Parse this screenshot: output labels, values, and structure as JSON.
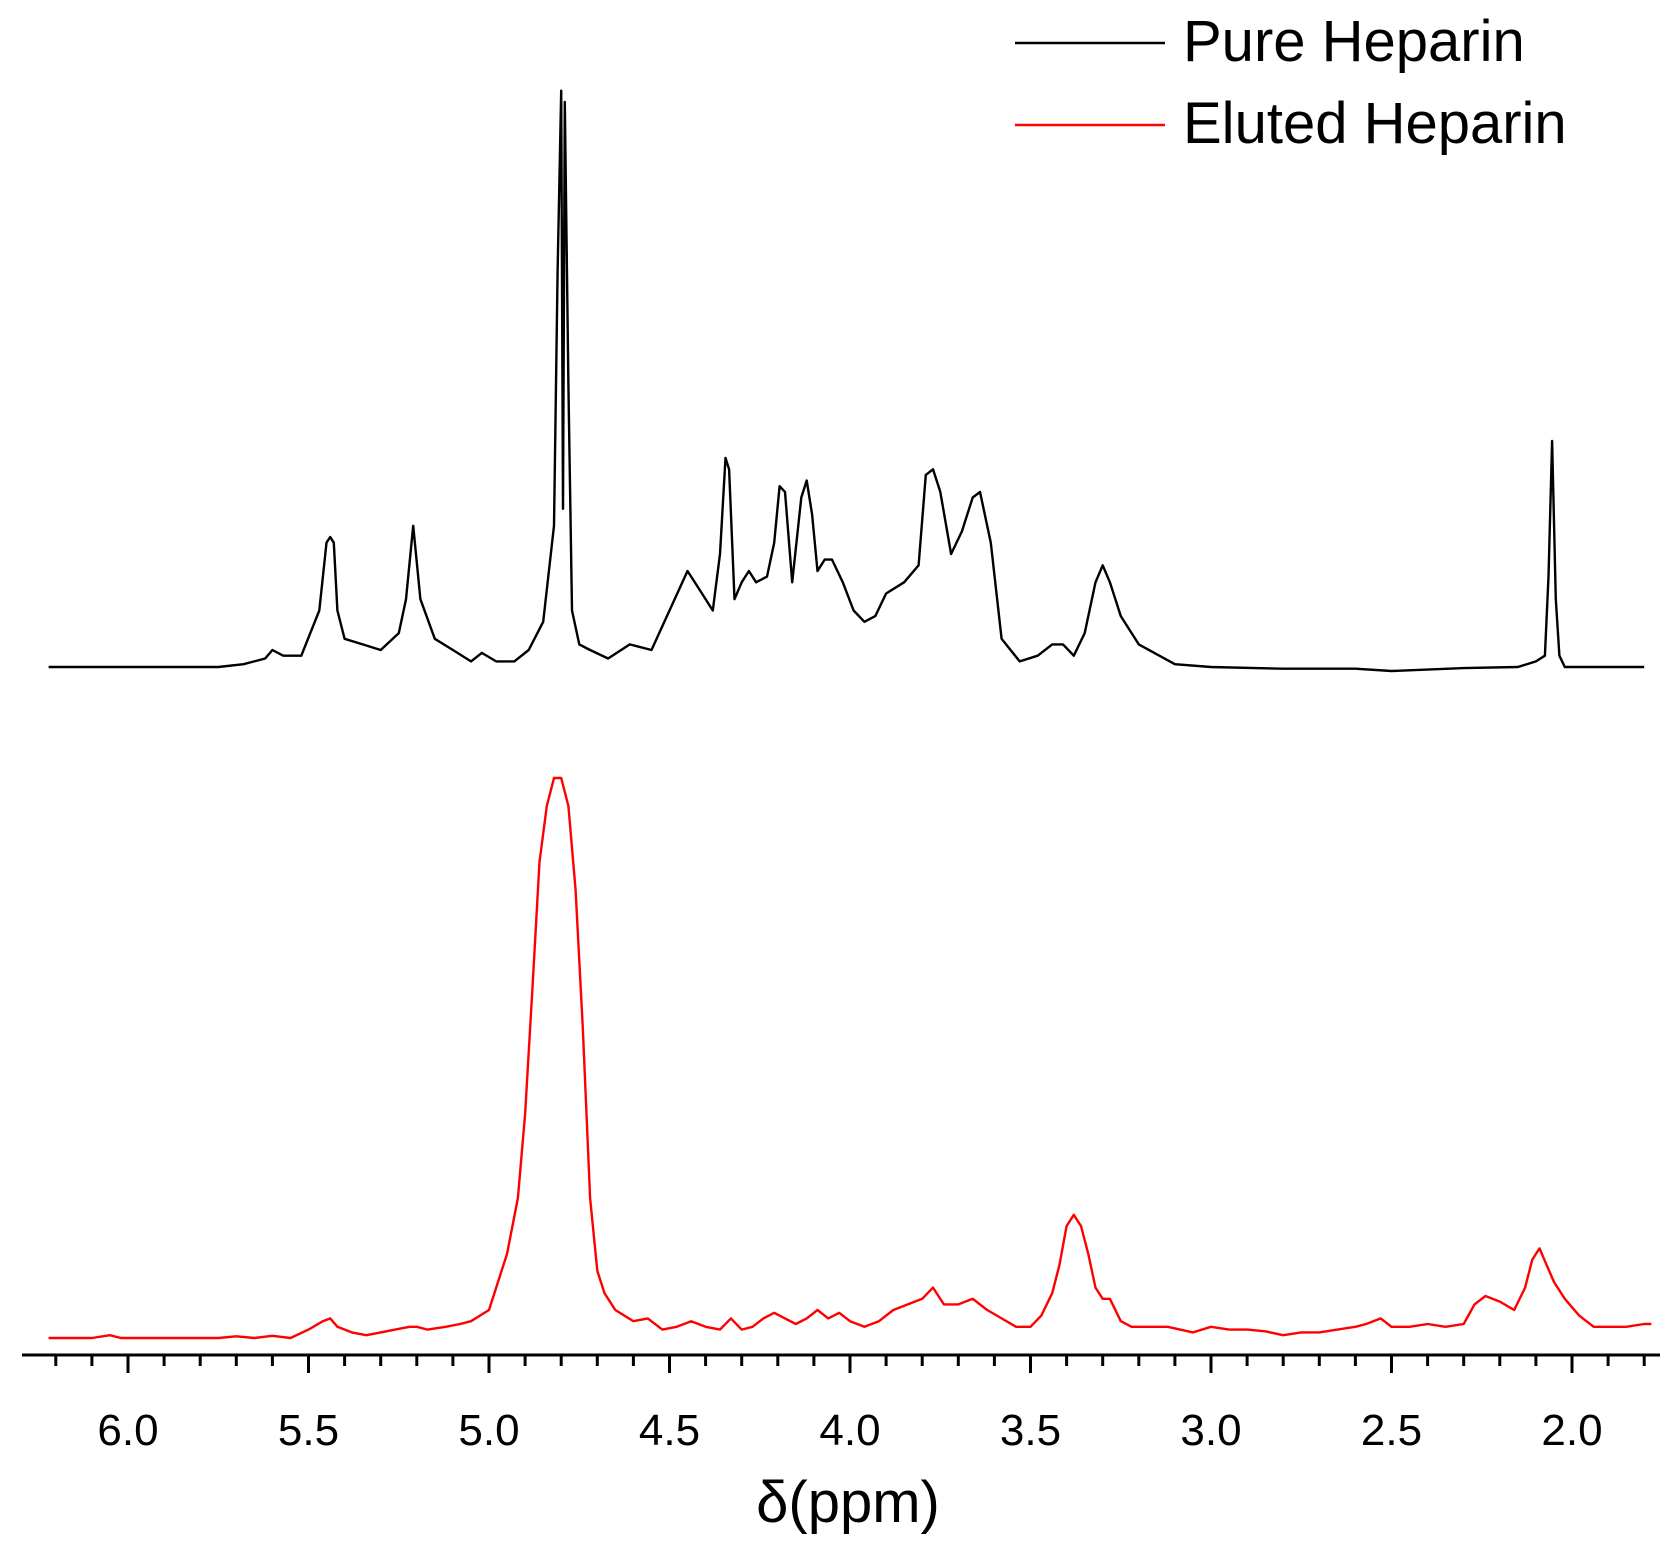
{
  "chart_data": {
    "type": "line",
    "xlabel": "δ(ppm)",
    "ylabel": "",
    "title": "",
    "x_reversed": true,
    "xlim": [
      6.25,
      1.75
    ],
    "x_major_ticks": [
      6.0,
      5.5,
      5.0,
      4.5,
      4.0,
      3.5,
      3.0,
      2.5,
      2.0
    ],
    "x_tick_labels": [
      "6.0",
      "5.5",
      "5.0",
      "4.5",
      "4.0",
      "3.5",
      "3.0",
      "2.5",
      "2.0"
    ],
    "x_minor_step": 0.1,
    "y_axis_shown": false,
    "legend_position": "top-right",
    "grid": false,
    "series": [
      {
        "name": "Pure Heparin",
        "color": "#000000",
        "offset": 1.0,
        "x": [
          6.22,
          5.75,
          5.68,
          5.62,
          5.6,
          5.57,
          5.52,
          5.47,
          5.45,
          5.44,
          5.43,
          5.42,
          5.4,
          5.35,
          5.3,
          5.25,
          5.23,
          5.21,
          5.19,
          5.15,
          5.1,
          5.05,
          5.02,
          4.98,
          4.93,
          4.89,
          4.85,
          4.82,
          4.81,
          4.8,
          4.795,
          4.79,
          4.78,
          4.77,
          4.75,
          4.72,
          4.67,
          4.61,
          4.55,
          4.5,
          4.45,
          4.42,
          4.38,
          4.36,
          4.345,
          4.335,
          4.32,
          4.3,
          4.28,
          4.26,
          4.23,
          4.21,
          4.195,
          4.18,
          4.16,
          4.135,
          4.12,
          4.105,
          4.09,
          4.07,
          4.05,
          4.02,
          3.99,
          3.96,
          3.93,
          3.9,
          3.85,
          3.81,
          3.79,
          3.77,
          3.75,
          3.72,
          3.69,
          3.66,
          3.64,
          3.61,
          3.58,
          3.53,
          3.48,
          3.44,
          3.41,
          3.38,
          3.35,
          3.32,
          3.3,
          3.28,
          3.25,
          3.2,
          3.1,
          3.0,
          2.8,
          2.6,
          2.5,
          2.3,
          2.15,
          2.1,
          2.075,
          2.065,
          2.055,
          2.045,
          2.035,
          2.02,
          1.95,
          1.8
        ],
        "y": [
          0.0,
          0.0,
          0.005,
          0.015,
          0.03,
          0.02,
          0.02,
          0.1,
          0.22,
          0.23,
          0.22,
          0.1,
          0.05,
          0.04,
          0.03,
          0.06,
          0.12,
          0.25,
          0.12,
          0.05,
          0.03,
          0.01,
          0.025,
          0.01,
          0.01,
          0.03,
          0.08,
          0.25,
          0.7,
          1.02,
          0.28,
          1.0,
          0.5,
          0.1,
          0.04,
          0.03,
          0.015,
          0.04,
          0.03,
          0.1,
          0.17,
          0.14,
          0.1,
          0.2,
          0.37,
          0.35,
          0.12,
          0.15,
          0.17,
          0.15,
          0.16,
          0.22,
          0.32,
          0.31,
          0.15,
          0.3,
          0.33,
          0.27,
          0.17,
          0.19,
          0.19,
          0.15,
          0.1,
          0.08,
          0.09,
          0.13,
          0.15,
          0.18,
          0.34,
          0.35,
          0.31,
          0.2,
          0.24,
          0.3,
          0.31,
          0.22,
          0.05,
          0.01,
          0.02,
          0.04,
          0.04,
          0.02,
          0.06,
          0.15,
          0.18,
          0.15,
          0.09,
          0.04,
          0.005,
          0.0,
          -0.003,
          -0.003,
          -0.007,
          -0.002,
          0.0,
          0.01,
          0.02,
          0.16,
          0.4,
          0.12,
          0.02,
          0.0,
          0.0,
          0.0
        ]
      },
      {
        "name": "Eluted Heparin",
        "color": "#ff0000",
        "offset": 0.0,
        "x": [
          6.22,
          6.1,
          6.05,
          6.02,
          5.95,
          5.75,
          5.7,
          5.65,
          5.6,
          5.55,
          5.5,
          5.46,
          5.44,
          5.42,
          5.38,
          5.34,
          5.3,
          5.26,
          5.22,
          5.2,
          5.17,
          5.12,
          5.08,
          5.05,
          5.0,
          4.95,
          4.92,
          4.9,
          4.88,
          4.86,
          4.84,
          4.82,
          4.8,
          4.78,
          4.76,
          4.74,
          4.72,
          4.7,
          4.68,
          4.65,
          4.6,
          4.56,
          4.52,
          4.48,
          4.44,
          4.4,
          4.36,
          4.33,
          4.3,
          4.27,
          4.24,
          4.21,
          4.18,
          4.15,
          4.12,
          4.09,
          4.06,
          4.03,
          4.0,
          3.96,
          3.92,
          3.88,
          3.84,
          3.8,
          3.77,
          3.74,
          3.7,
          3.66,
          3.62,
          3.58,
          3.54,
          3.5,
          3.47,
          3.44,
          3.42,
          3.4,
          3.38,
          3.36,
          3.34,
          3.32,
          3.3,
          3.28,
          3.25,
          3.22,
          3.18,
          3.12,
          3.05,
          3.0,
          2.95,
          2.9,
          2.85,
          2.8,
          2.75,
          2.7,
          2.65,
          2.6,
          2.57,
          2.53,
          2.5,
          2.45,
          2.4,
          2.35,
          2.3,
          2.27,
          2.24,
          2.2,
          2.16,
          2.13,
          2.11,
          2.09,
          2.07,
          2.05,
          2.02,
          1.98,
          1.94,
          1.9,
          1.85,
          1.8,
          1.78
        ],
        "y": [
          0.0,
          0.0,
          0.005,
          0.0,
          0.0,
          0.0,
          0.003,
          0.0,
          0.004,
          0.0,
          0.015,
          0.03,
          0.035,
          0.02,
          0.01,
          0.005,
          0.01,
          0.015,
          0.02,
          0.02,
          0.015,
          0.02,
          0.025,
          0.03,
          0.05,
          0.15,
          0.25,
          0.4,
          0.62,
          0.85,
          0.95,
          1.0,
          1.0,
          0.95,
          0.8,
          0.55,
          0.25,
          0.12,
          0.08,
          0.05,
          0.03,
          0.035,
          0.015,
          0.02,
          0.03,
          0.02,
          0.015,
          0.035,
          0.015,
          0.02,
          0.035,
          0.045,
          0.035,
          0.025,
          0.035,
          0.05,
          0.035,
          0.045,
          0.03,
          0.02,
          0.03,
          0.05,
          0.06,
          0.07,
          0.09,
          0.06,
          0.06,
          0.07,
          0.05,
          0.035,
          0.02,
          0.02,
          0.04,
          0.08,
          0.13,
          0.2,
          0.22,
          0.2,
          0.15,
          0.09,
          0.07,
          0.07,
          0.03,
          0.02,
          0.02,
          0.02,
          0.01,
          0.02,
          0.015,
          0.015,
          0.012,
          0.005,
          0.01,
          0.01,
          0.015,
          0.02,
          0.025,
          0.035,
          0.02,
          0.02,
          0.025,
          0.02,
          0.025,
          0.06,
          0.075,
          0.065,
          0.05,
          0.09,
          0.14,
          0.16,
          0.13,
          0.1,
          0.07,
          0.04,
          0.02,
          0.02,
          0.02,
          0.025,
          0.025
        ]
      }
    ]
  }
}
